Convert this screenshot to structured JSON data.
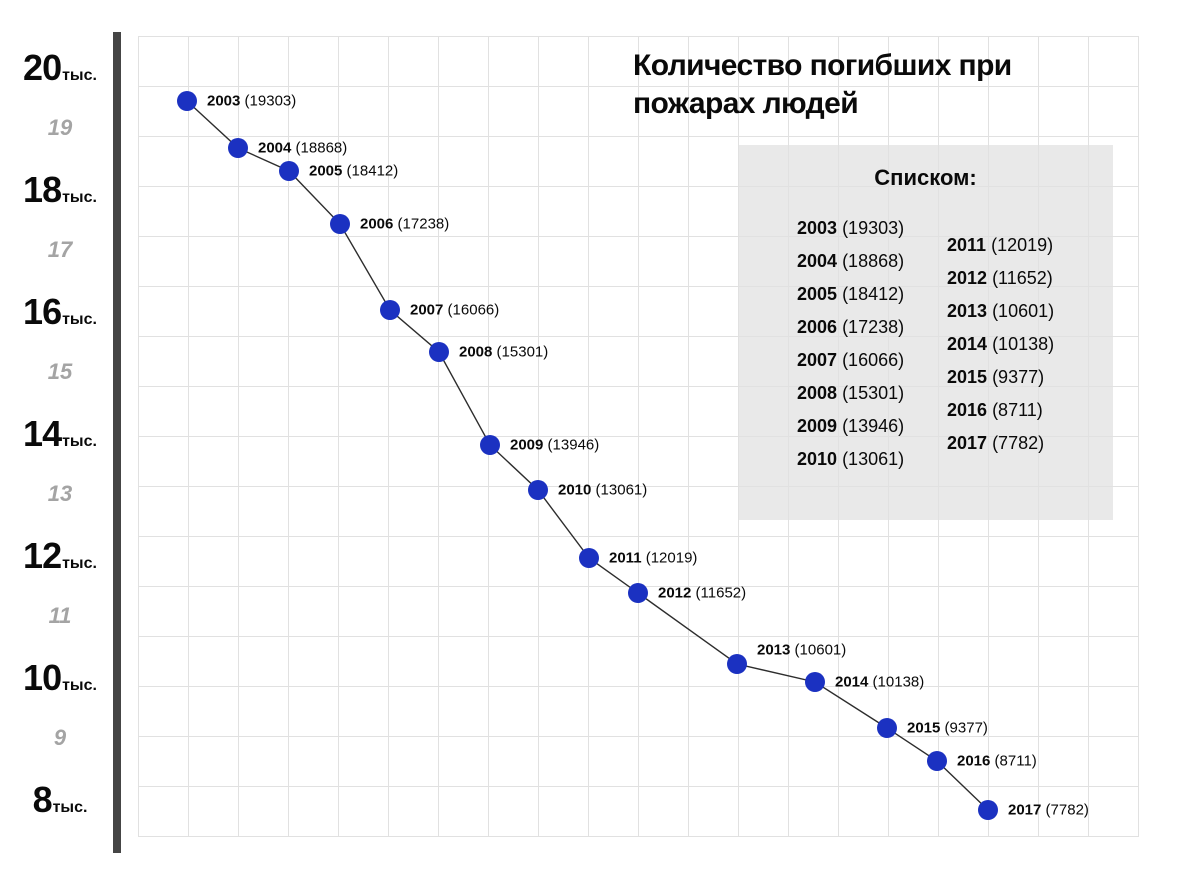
{
  "title": "Количество погибших при пожарах людей",
  "y_axis": {
    "major_labels": [
      {
        "num": "20",
        "unit": "тыс."
      },
      {
        "num": "18",
        "unit": "тыс."
      },
      {
        "num": "16",
        "unit": "тыс."
      },
      {
        "num": "14",
        "unit": "тыс."
      },
      {
        "num": "12",
        "unit": "тыс."
      },
      {
        "num": "10",
        "unit": "тыс."
      },
      {
        "num": "8",
        "unit": "тыс."
      }
    ],
    "minor_labels": [
      "19",
      "17",
      "15",
      "13",
      "11",
      "9"
    ]
  },
  "list_panel": {
    "heading": "Списком:"
  },
  "chart_data": {
    "type": "line",
    "title": "Количество погибших при пожарах людей",
    "x": [
      2003,
      2004,
      2005,
      2006,
      2007,
      2008,
      2009,
      2010,
      2011,
      2012,
      2013,
      2014,
      2015,
      2016,
      2017
    ],
    "values": [
      19303,
      18868,
      18412,
      17238,
      16066,
      15301,
      13946,
      13061,
      12019,
      11652,
      10601,
      10138,
      9377,
      8711,
      7782
    ],
    "points": [
      {
        "year": "2003",
        "value": "19303"
      },
      {
        "year": "2004",
        "value": "18868"
      },
      {
        "year": "2005",
        "value": "18412"
      },
      {
        "year": "2006",
        "value": "17238"
      },
      {
        "year": "2007",
        "value": "16066"
      },
      {
        "year": "2008",
        "value": "15301"
      },
      {
        "year": "2009",
        "value": "13946"
      },
      {
        "year": "2010",
        "value": "13061"
      },
      {
        "year": "2011",
        "value": "12019"
      },
      {
        "year": "2012",
        "value": "11652"
      },
      {
        "year": "2013",
        "value": "10601"
      },
      {
        "year": "2014",
        "value": "10138"
      },
      {
        "year": "2015",
        "value": "9377"
      },
      {
        "year": "2016",
        "value": "8711"
      },
      {
        "year": "2017",
        "value": "7782"
      }
    ],
    "y_tick_labels": [
      "20тыс.",
      "19",
      "18тыс.",
      "17",
      "16тыс.",
      "15",
      "14тыс.",
      "13",
      "12тыс.",
      "11",
      "10тыс.",
      "9",
      "8тыс."
    ],
    "xlabel": "",
    "ylabel": "тыс. (thousands of deaths)",
    "ylim": [
      7500,
      20500
    ],
    "grid": true,
    "marker": "circle",
    "legend": "none"
  },
  "colors": {
    "point": "#1b31c1",
    "line": "#2d2d2d",
    "axis_bar": "#454545",
    "grid_line": "#e1e1e1",
    "panel_bg": "#e9e9e9",
    "minor_label": "#a4a4a4",
    "text": "#0a0a0a"
  }
}
